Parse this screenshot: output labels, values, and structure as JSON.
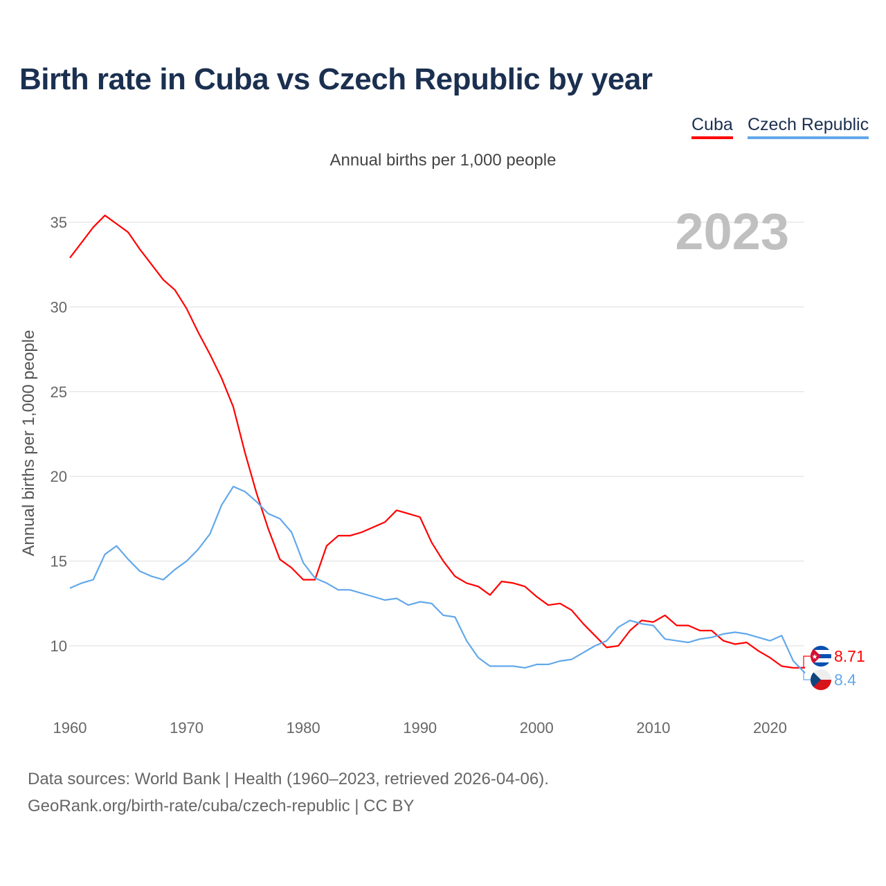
{
  "title": "Birth rate in Cuba vs Czech Republic by year",
  "subtitle": "Annual births per 1,000 people",
  "legend": [
    {
      "label": "Cuba",
      "color": "#ff0000"
    },
    {
      "label": "Czech Republic",
      "color": "#62a8ea"
    }
  ],
  "footer": {
    "line1": "Data sources: World Bank | Health (1960–2023, retrieved 2026-04-06).",
    "line2": "GeoRank.org/birth-rate/cuba/czech-republic | CC BY"
  },
  "chart_data": {
    "type": "line",
    "title": "Birth rate in Cuba vs Czech Republic by year",
    "ylabel": "Annual births per 1,000 people",
    "xlabel": "",
    "year_watermark": "2023",
    "xlim": [
      1960,
      2023
    ],
    "ylim": [
      7,
      36
    ],
    "yticks": [
      10,
      15,
      20,
      25,
      30,
      35
    ],
    "xticks": [
      1960,
      1970,
      1980,
      1990,
      2000,
      2010,
      2020
    ],
    "grid": true,
    "legend_position": "top-right",
    "x_start": 1960,
    "series": [
      {
        "name": "Cuba",
        "color": "#ff0000",
        "end_label": "8.71",
        "flag": "cuba-flag",
        "values": [
          32.9,
          33.8,
          34.7,
          35.4,
          34.9,
          34.4,
          33.4,
          32.5,
          31.6,
          31.0,
          29.9,
          28.5,
          27.2,
          25.8,
          24.1,
          21.4,
          19.0,
          16.9,
          15.1,
          14.6,
          13.9,
          13.9,
          15.9,
          16.5,
          16.5,
          16.7,
          17.0,
          17.3,
          18.0,
          17.8,
          17.6,
          16.1,
          15.0,
          14.1,
          13.7,
          13.5,
          13.0,
          13.8,
          13.7,
          13.5,
          12.9,
          12.4,
          12.5,
          12.1,
          11.3,
          10.6,
          9.9,
          10.0,
          10.9,
          11.5,
          11.4,
          11.8,
          11.2,
          11.2,
          10.9,
          10.9,
          10.3,
          10.1,
          10.2,
          9.7,
          9.3,
          8.8,
          8.7,
          8.71
        ]
      },
      {
        "name": "Czech Republic",
        "color": "#62a8ea",
        "end_label": "8.4",
        "flag": "czech-flag",
        "values": [
          13.4,
          13.7,
          13.9,
          15.4,
          15.9,
          15.1,
          14.4,
          14.1,
          13.9,
          14.5,
          15.0,
          15.7,
          16.6,
          18.3,
          19.4,
          19.1,
          18.5,
          17.8,
          17.5,
          16.7,
          14.9,
          14.0,
          13.7,
          13.3,
          13.3,
          13.1,
          12.9,
          12.7,
          12.8,
          12.4,
          12.6,
          12.5,
          11.8,
          11.7,
          10.3,
          9.3,
          8.8,
          8.8,
          8.8,
          8.7,
          8.9,
          8.9,
          9.1,
          9.2,
          9.6,
          10.0,
          10.3,
          11.1,
          11.5,
          11.3,
          11.2,
          10.4,
          10.3,
          10.2,
          10.4,
          10.5,
          10.7,
          10.8,
          10.7,
          10.5,
          10.3,
          10.6,
          9.1,
          8.4
        ]
      }
    ]
  }
}
